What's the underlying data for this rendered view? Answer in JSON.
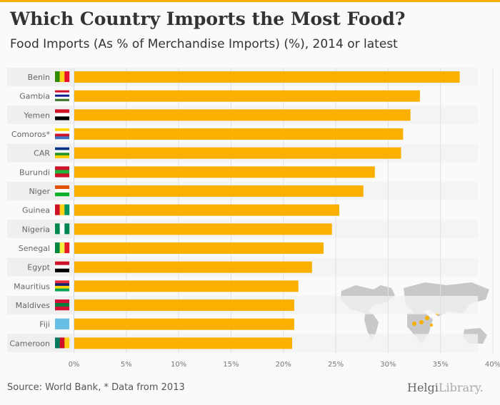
{
  "header": {
    "title": "Which Country Imports the Most Food?",
    "subtitle": "Food Imports (As % of Merchandise Imports) (%), 2014 or latest"
  },
  "footer": {
    "source": "Source: World Bank, * Data from 2013",
    "logo_main": "Helgi",
    "logo_rest": "Library."
  },
  "colors": {
    "bar": "#f9b000",
    "accent": "#f9b000",
    "row_alt": "#efefef",
    "grid": "#e0e0e0",
    "map": "#c8c8c8",
    "map_highlight": "#f9b000"
  },
  "chart_data": {
    "type": "bar",
    "orientation": "horizontal",
    "title": "Which Country Imports the Most Food?",
    "subtitle": "Food Imports (As % of Merchandise Imports) (%), 2014 or latest",
    "xlabel": "",
    "ylabel": "",
    "xlim": [
      0,
      40
    ],
    "grid": true,
    "ticks": [
      "0%",
      "5%",
      "10%",
      "15%",
      "20%",
      "25%",
      "30%",
      "35%",
      "40%"
    ],
    "categories": [
      "Benin",
      "Gambia",
      "Yemen",
      "Comoros*",
      "CAR",
      "Burundi",
      "Niger",
      "Guinea",
      "Nigeria",
      "Senegal",
      "Egypt",
      "Mauritius",
      "Maldives",
      "Fiji",
      "Cameroon"
    ],
    "values": [
      36.8,
      33.0,
      32.1,
      31.4,
      31.2,
      28.7,
      27.6,
      25.3,
      24.6,
      23.8,
      22.7,
      21.4,
      21.0,
      21.0,
      20.8
    ],
    "flags": [
      {
        "dir": "v",
        "colors": [
          "#2e8b00",
          "#fcd116",
          "#e8112d"
        ]
      },
      {
        "dir": "h",
        "colors": [
          "#ce1126",
          "#ffffff",
          "#0c1c8c",
          "#ffffff",
          "#3a7728"
        ]
      },
      {
        "dir": "h",
        "colors": [
          "#ce1126",
          "#ffffff",
          "#000000"
        ]
      },
      {
        "dir": "h",
        "colors": [
          "#ffd500",
          "#ffffff",
          "#ce1126",
          "#3a75c4"
        ]
      },
      {
        "dir": "h",
        "colors": [
          "#003082",
          "#ffffff",
          "#289728",
          "#ffce00"
        ]
      },
      {
        "dir": "h",
        "colors": [
          "#ce1126",
          "#1eb53a",
          "#ce1126"
        ]
      },
      {
        "dir": "h",
        "colors": [
          "#e05206",
          "#ffffff",
          "#0db02b"
        ]
      },
      {
        "dir": "v",
        "colors": [
          "#ce1126",
          "#fcd116",
          "#009460"
        ]
      },
      {
        "dir": "v",
        "colors": [
          "#008751",
          "#ffffff",
          "#008751"
        ]
      },
      {
        "dir": "v",
        "colors": [
          "#00853f",
          "#fdef42",
          "#e31b23"
        ]
      },
      {
        "dir": "h",
        "colors": [
          "#ce1126",
          "#ffffff",
          "#000000"
        ]
      },
      {
        "dir": "h",
        "colors": [
          "#ea2839",
          "#1a206d",
          "#ffd500",
          "#00a551"
        ]
      },
      {
        "dir": "h",
        "colors": [
          "#d21034",
          "#007e3a",
          "#d21034"
        ]
      },
      {
        "dir": "h",
        "colors": [
          "#68bfe5",
          "#68bfe5"
        ]
      },
      {
        "dir": "v",
        "colors": [
          "#007a5e",
          "#ce1126",
          "#fcd116"
        ]
      }
    ]
  }
}
